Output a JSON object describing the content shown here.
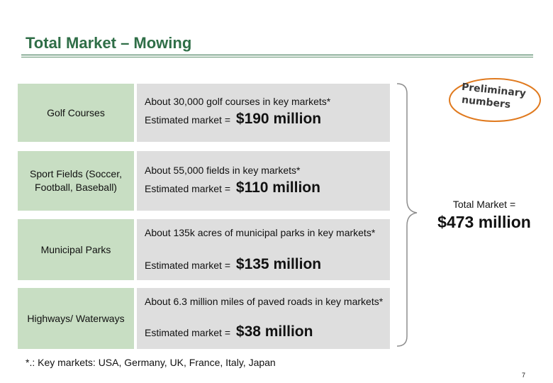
{
  "header": {
    "title": "Total Market – Mowing"
  },
  "badge": {
    "line1": "Preliminary",
    "line2": "numbers"
  },
  "rows": [
    {
      "category": "Golf Courses",
      "description": "About 30,000 golf courses in key markets*",
      "estimate_label": "Estimated market =",
      "estimate_value": "$190  million"
    },
    {
      "category": "Sport Fields (Soccer, Football, Baseball)",
      "description": "About 55,000 fields in key markets*",
      "estimate_label": "Estimated market =",
      "estimate_value": "$110  million"
    },
    {
      "category": "Municipal Parks",
      "description": "About 135k acres of municipal parks in key markets*",
      "estimate_label": "Estimated market =",
      "estimate_value": "$135  million"
    },
    {
      "category": "Highways/ Waterways",
      "description": "About 6.3 million  miles of paved roads in key markets*",
      "estimate_label": "Estimated market =",
      "estimate_value": "$38  million"
    }
  ],
  "total": {
    "label": "Total Market =",
    "value": "$473 million"
  },
  "footnote": "*.: Key markets: USA, Germany, UK, France, Italy, Japan",
  "page_number": "7",
  "colors": {
    "title": "#2f6e47",
    "category_bg": "#c8dec3",
    "info_bg": "#dedede",
    "badge": "#e07a1f"
  }
}
